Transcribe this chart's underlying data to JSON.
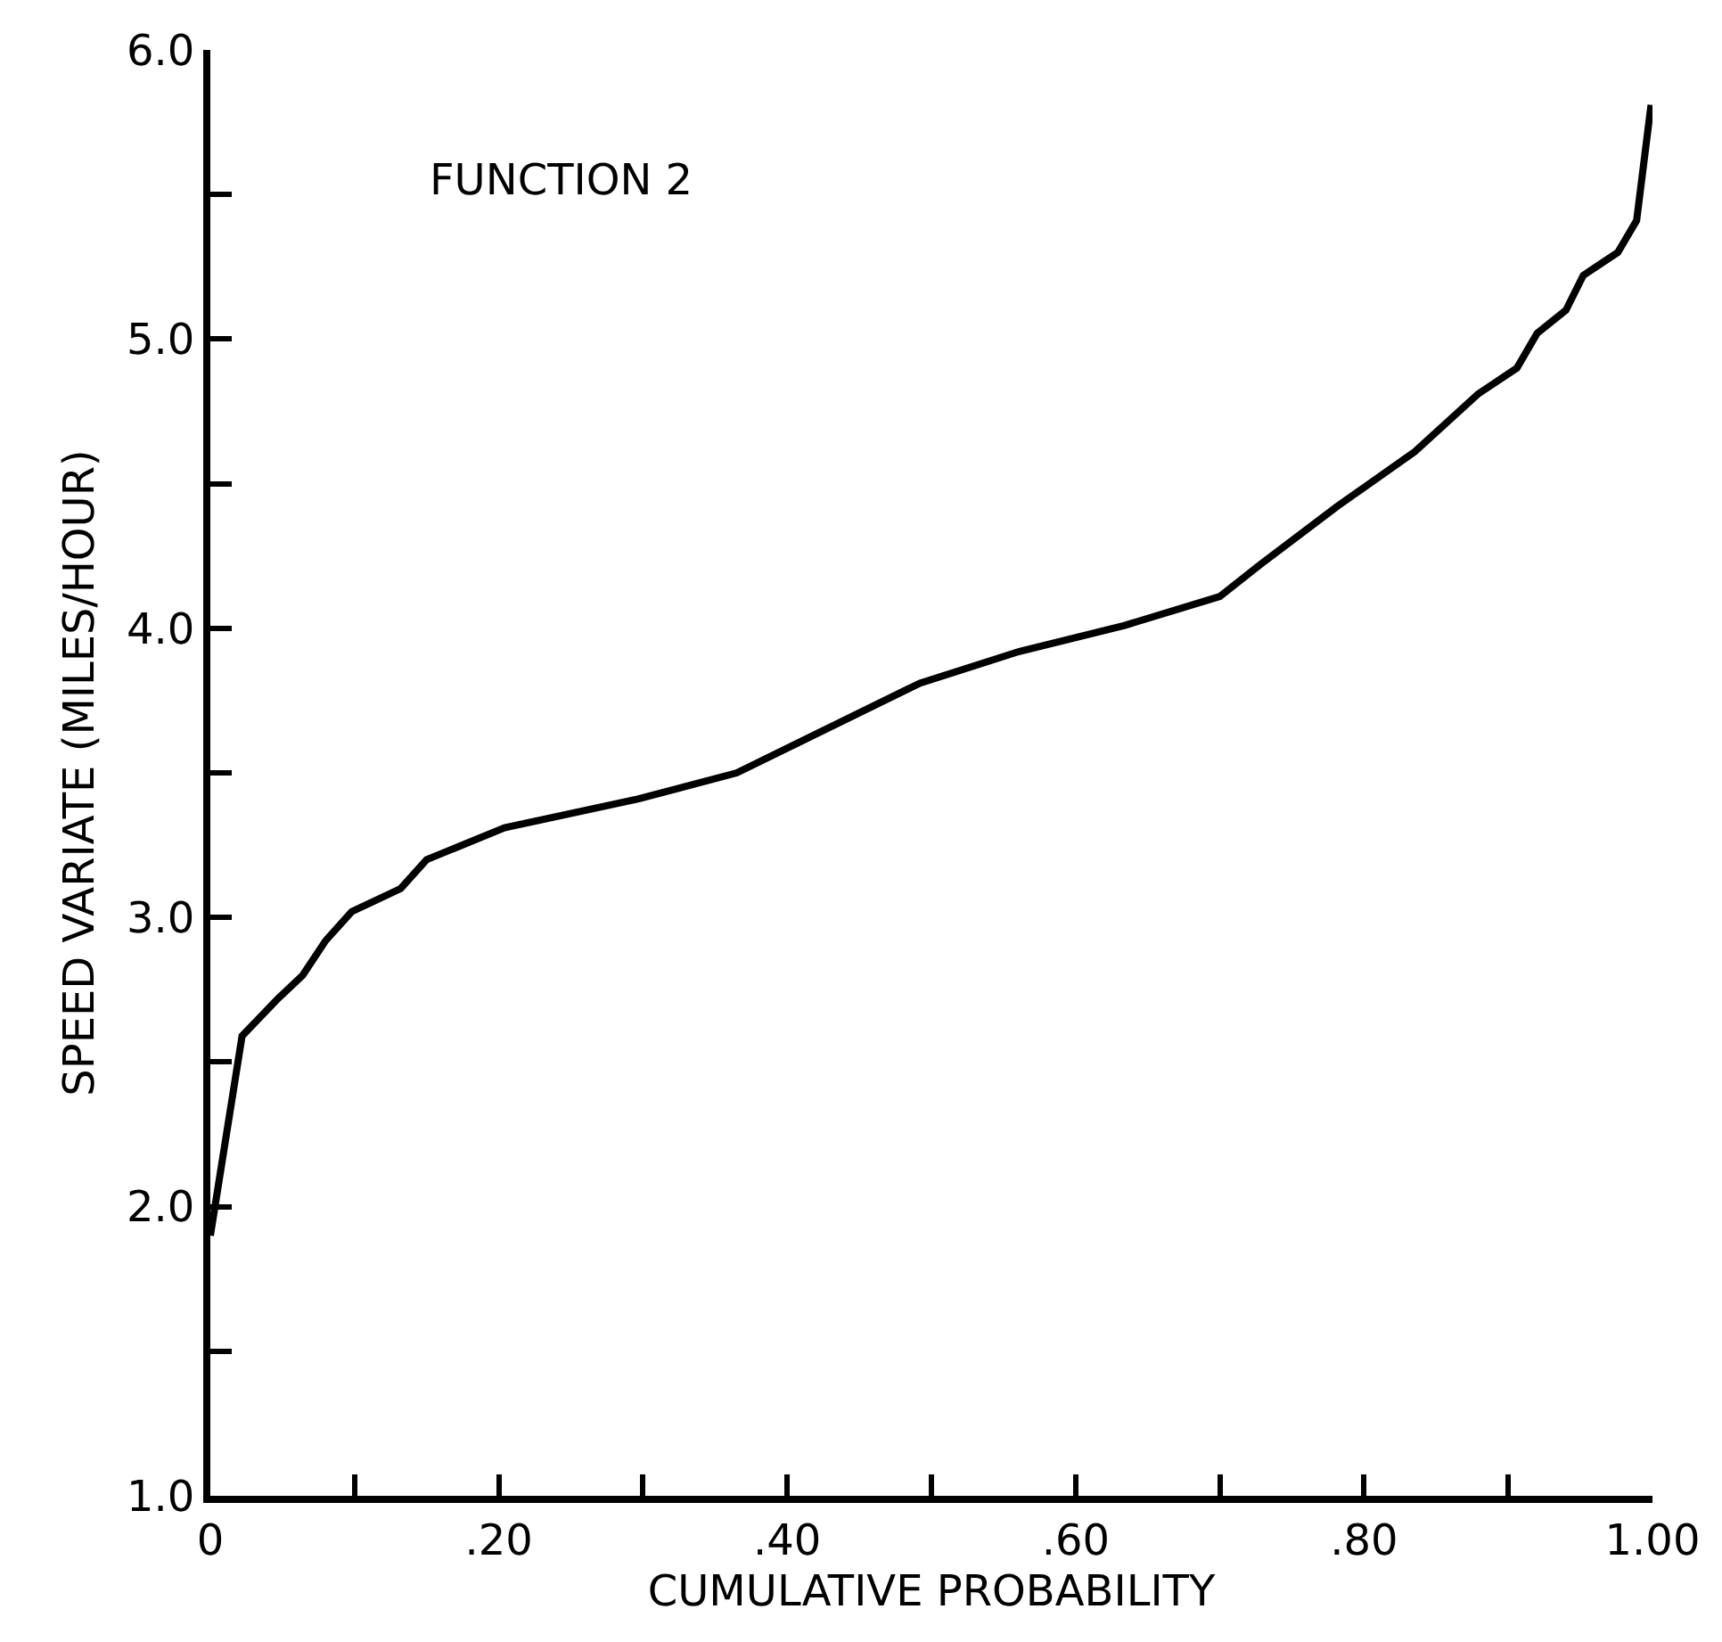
{
  "chart_data": {
    "type": "line",
    "xlabel": "CUMULATIVE PROBABILITY",
    "ylabel": "SPEED VARIATE (MILES/HOUR)",
    "annotations": [
      "FUNCTION 2"
    ],
    "x": [
      0,
      0.022,
      0.047,
      0.064,
      0.08,
      0.098,
      0.132,
      0.15,
      0.204,
      0.297,
      0.365,
      0.41,
      0.492,
      0.561,
      0.634,
      0.7,
      0.728,
      0.781,
      0.835,
      0.879,
      0.906,
      0.92,
      0.94,
      0.952,
      0.976,
      0.989,
      0.999
    ],
    "series": [
      {
        "color": "#000000",
        "values": [
          1.9,
          2.59,
          2.72,
          2.8,
          2.92,
          3.02,
          3.1,
          3.2,
          3.31,
          3.41,
          3.5,
          3.61,
          3.81,
          3.92,
          4.01,
          4.11,
          4.22,
          4.42,
          4.61,
          4.81,
          4.9,
          5.02,
          5.1,
          5.22,
          5.3,
          5.41,
          5.81
        ]
      }
    ],
    "xlim": [
      0,
      1.0
    ],
    "ylim": [
      1.0,
      6.0
    ],
    "xticks": [
      0,
      {
        "value": 0.1,
        "label": null
      },
      {
        "value": 0.2,
        "label": ".20"
      },
      {
        "value": 0.3,
        "label": null
      },
      {
        "value": 0.4,
        "label": ".40"
      },
      {
        "value": 0.5,
        "label": null
      },
      {
        "value": 0.6,
        "label": ".60"
      },
      {
        "value": 0.7,
        "label": null
      },
      {
        "value": 0.8,
        "label": ".80"
      },
      {
        "value": 0.9,
        "label": null
      },
      {
        "value": 1.0,
        "label": "1.00"
      }
    ],
    "yticks": [
      {
        "value": 1.0,
        "label": "1.0"
      },
      {
        "value": 1.5,
        "label": null
      },
      {
        "value": 2.0,
        "label": "2.0"
      },
      {
        "value": 2.5,
        "label": null
      },
      {
        "value": 3.0,
        "label": "3.0"
      },
      {
        "value": 3.5,
        "label": null
      },
      {
        "value": 4.0,
        "label": "4.0"
      },
      {
        "value": 4.5,
        "label": null
      },
      {
        "value": 5.0,
        "label": "5.0"
      },
      {
        "value": 5.5,
        "label": null
      },
      {
        "value": 6.0,
        "label": "6.0"
      }
    ],
    "marker": "none",
    "line_style": "solid"
  }
}
